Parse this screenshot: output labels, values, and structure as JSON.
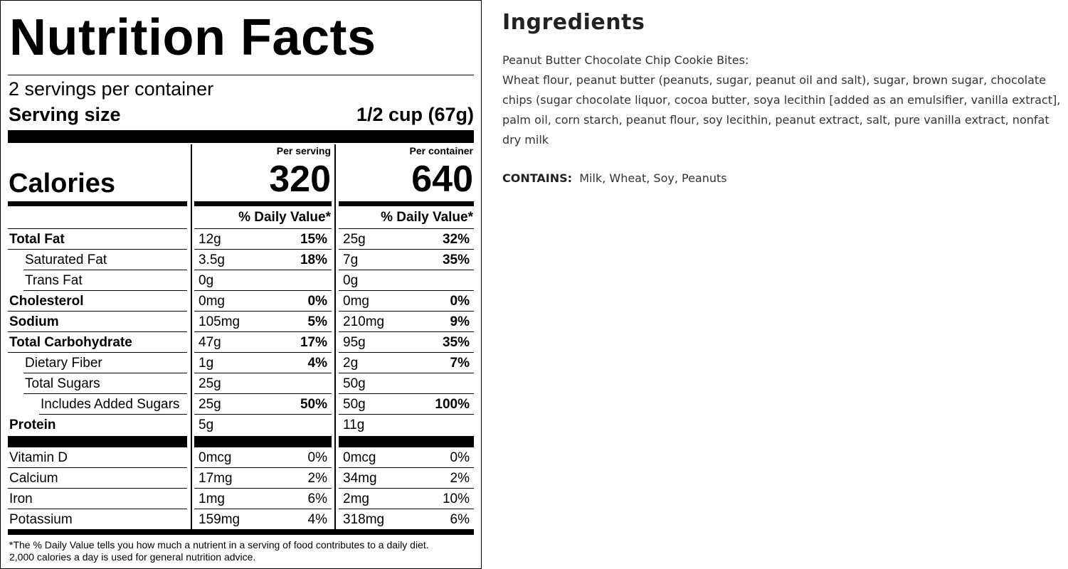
{
  "nutrition": {
    "title": "Nutrition Facts",
    "servings": "2 servings per container",
    "serving_size_label": "Serving size",
    "serving_size": "1/2 cup (67g)",
    "calories_label": "Calories",
    "columns": [
      {
        "heading": "Per serving",
        "calories": "320",
        "dv_heading": "% Daily Value*"
      },
      {
        "heading": "Per container",
        "calories": "640",
        "dv_heading": "% Daily Value*"
      }
    ],
    "rows": [
      {
        "name": "Total Fat",
        "bold": true,
        "indent": 0,
        "cells": [
          [
            "12g",
            "15%"
          ],
          [
            "25g",
            "32%"
          ]
        ]
      },
      {
        "name": "Saturated Fat",
        "bold": false,
        "indent": 1,
        "cells": [
          [
            "3.5g",
            "18%"
          ],
          [
            "7g",
            "35%"
          ]
        ]
      },
      {
        "name": "Trans Fat",
        "bold": false,
        "indent": 1,
        "cells": [
          [
            "0g",
            null
          ],
          [
            "0g",
            null
          ]
        ]
      },
      {
        "name": "Cholesterol",
        "bold": true,
        "indent": 0,
        "cells": [
          [
            "0mg",
            "0%"
          ],
          [
            "0mg",
            "0%"
          ]
        ]
      },
      {
        "name": "Sodium",
        "bold": true,
        "indent": 0,
        "cells": [
          [
            "105mg",
            "5%"
          ],
          [
            "210mg",
            "9%"
          ]
        ]
      },
      {
        "name": "Total Carbohydrate",
        "bold": true,
        "indent": 0,
        "cells": [
          [
            "47g",
            "17%"
          ],
          [
            "95g",
            "35%"
          ]
        ]
      },
      {
        "name": "Dietary Fiber",
        "bold": false,
        "indent": 1,
        "cells": [
          [
            "1g",
            "4%"
          ],
          [
            "2g",
            "7%"
          ]
        ]
      },
      {
        "name": "Total Sugars",
        "bold": false,
        "indent": 1,
        "cells": [
          [
            "25g",
            null
          ],
          [
            "50g",
            null
          ]
        ]
      },
      {
        "name": "Includes Added Sugars",
        "bold": false,
        "indent": 2,
        "cells": [
          [
            "25g",
            "50%"
          ],
          [
            "50g",
            "100%"
          ]
        ]
      },
      {
        "name": "Protein",
        "bold": true,
        "indent": 0,
        "cells": [
          [
            "5g",
            null
          ],
          [
            "11g",
            null
          ]
        ]
      }
    ],
    "vitamins": [
      {
        "name": "Vitamin D",
        "cells": [
          [
            "0mcg",
            "0%"
          ],
          [
            "0mcg",
            "0%"
          ]
        ]
      },
      {
        "name": "Calcium",
        "cells": [
          [
            "17mg",
            "2%"
          ],
          [
            "34mg",
            "2%"
          ]
        ]
      },
      {
        "name": "Iron",
        "cells": [
          [
            "1mg",
            "6%"
          ],
          [
            "2mg",
            "10%"
          ]
        ]
      },
      {
        "name": "Potassium",
        "cells": [
          [
            "159mg",
            "4%"
          ],
          [
            "318mg",
            "6%"
          ]
        ]
      }
    ],
    "footnote": [
      "*The % Daily Value tells you how much a nutrient in a serving of food contributes to a daily diet.",
      "2,000 calories a day is used for general nutrition advice."
    ]
  },
  "ingredients": {
    "title": "Ingredients",
    "product": "Peanut Butter Chocolate Chip Cookie Bites:",
    "text": "Wheat flour, peanut butter (peanuts, sugar, peanut oil and salt), sugar, brown sugar, chocolate chips (sugar chocolate liquor, cocoa butter, soya lecithin [added as an emulsifier, vanilla extract], palm oil, corn starch, peanut flour, soy lecithin, peanut extract, salt, pure vanilla extract, nonfat dry milk",
    "contains_label": "CONTAINS:",
    "contains": "Milk, Wheat, Soy, Peanuts"
  }
}
